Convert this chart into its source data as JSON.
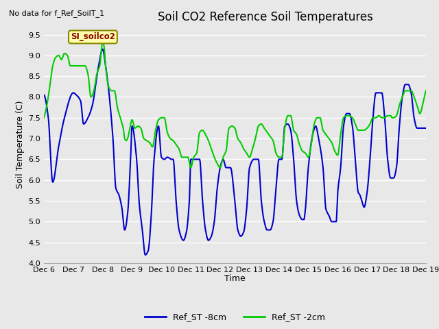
{
  "title": "Soil CO2 Reference Soil Temperatures",
  "xlabel": "Time",
  "ylabel": "Soil Temperature (C)",
  "ylim": [
    4.0,
    9.7
  ],
  "yticks": [
    4.0,
    4.5,
    5.0,
    5.5,
    6.0,
    6.5,
    7.0,
    7.5,
    8.0,
    8.5,
    9.0,
    9.5
  ],
  "xlim_days": [
    6,
    19
  ],
  "xtick_labels": [
    "Dec 6",
    "Dec 7",
    "Dec 8",
    "Dec 9",
    "Dec 10",
    "Dec 11",
    "Dec 12",
    "Dec 13",
    "Dec 14",
    "Dec 15",
    "Dec 16",
    "Dec 17",
    "Dec 18",
    "Dec 19"
  ],
  "xtick_positions": [
    6,
    7,
    8,
    9,
    10,
    11,
    12,
    13,
    14,
    15,
    16,
    17,
    18,
    19
  ],
  "line1_color": "#0000cc",
  "line2_color": "#00cc00",
  "line1_label": "Ref_ST -8cm",
  "line2_label": "Ref_ST -2cm",
  "line_width": 1.5,
  "background_color": "#e8e8e8",
  "annotation_text": "No data for f_Ref_SoilT_1",
  "site_label": "SI_soilco2",
  "title_fontsize": 12,
  "label_fontsize": 9,
  "tick_fontsize": 8,
  "legend_fontsize": 9,
  "blue_pts": [
    [
      6.0,
      8.05
    ],
    [
      6.15,
      7.5
    ],
    [
      6.3,
      5.95
    ],
    [
      6.5,
      6.8
    ],
    [
      6.7,
      7.5
    ],
    [
      7.0,
      8.1
    ],
    [
      7.1,
      8.05
    ],
    [
      7.25,
      7.9
    ],
    [
      7.35,
      7.35
    ],
    [
      7.5,
      7.5
    ],
    [
      7.65,
      7.8
    ],
    [
      7.85,
      8.7
    ],
    [
      8.0,
      9.15
    ],
    [
      8.1,
      8.75
    ],
    [
      8.2,
      8.2
    ],
    [
      8.35,
      7.0
    ],
    [
      8.45,
      5.8
    ],
    [
      8.55,
      5.65
    ],
    [
      8.65,
      5.35
    ],
    [
      8.75,
      4.8
    ],
    [
      8.85,
      5.2
    ],
    [
      8.95,
      6.5
    ],
    [
      9.0,
      7.3
    ],
    [
      9.15,
      6.55
    ],
    [
      9.25,
      5.4
    ],
    [
      9.35,
      4.8
    ],
    [
      9.45,
      4.2
    ],
    [
      9.55,
      4.3
    ],
    [
      9.65,
      5.1
    ],
    [
      9.75,
      6.5
    ],
    [
      9.9,
      7.3
    ],
    [
      10.0,
      6.55
    ],
    [
      10.1,
      6.5
    ],
    [
      10.2,
      6.55
    ],
    [
      10.35,
      6.5
    ],
    [
      10.4,
      6.5
    ],
    [
      10.5,
      5.5
    ],
    [
      10.6,
      4.8
    ],
    [
      10.75,
      4.55
    ],
    [
      10.85,
      4.75
    ],
    [
      10.95,
      5.5
    ],
    [
      11.0,
      6.5
    ],
    [
      11.1,
      6.5
    ],
    [
      11.15,
      6.5
    ],
    [
      11.3,
      6.5
    ],
    [
      11.4,
      5.5
    ],
    [
      11.5,
      4.8
    ],
    [
      11.6,
      4.55
    ],
    [
      11.7,
      4.65
    ],
    [
      11.8,
      5.0
    ],
    [
      11.9,
      5.8
    ],
    [
      12.0,
      6.3
    ],
    [
      12.1,
      6.5
    ],
    [
      12.2,
      6.3
    ],
    [
      12.35,
      6.3
    ],
    [
      12.5,
      5.5
    ],
    [
      12.6,
      4.8
    ],
    [
      12.7,
      4.65
    ],
    [
      12.8,
      4.75
    ],
    [
      12.9,
      5.3
    ],
    [
      13.0,
      6.3
    ],
    [
      13.15,
      6.5
    ],
    [
      13.3,
      6.5
    ],
    [
      13.4,
      5.5
    ],
    [
      13.5,
      5.0
    ],
    [
      13.6,
      4.8
    ],
    [
      13.7,
      4.8
    ],
    [
      13.8,
      5.0
    ],
    [
      13.9,
      5.8
    ],
    [
      14.0,
      6.5
    ],
    [
      14.1,
      6.5
    ],
    [
      14.2,
      7.3
    ],
    [
      14.3,
      7.35
    ],
    [
      14.4,
      7.2
    ],
    [
      14.5,
      6.5
    ],
    [
      14.6,
      5.5
    ],
    [
      14.7,
      5.15
    ],
    [
      14.8,
      5.05
    ],
    [
      14.85,
      5.05
    ],
    [
      14.9,
      5.3
    ],
    [
      15.0,
      6.3
    ],
    [
      15.15,
      7.1
    ],
    [
      15.25,
      7.3
    ],
    [
      15.35,
      7.0
    ],
    [
      15.5,
      6.3
    ],
    [
      15.6,
      5.3
    ],
    [
      15.7,
      5.15
    ],
    [
      15.8,
      5.0
    ],
    [
      15.9,
      5.0
    ],
    [
      15.95,
      5.0
    ],
    [
      16.0,
      5.7
    ],
    [
      16.1,
      6.3
    ],
    [
      16.2,
      7.3
    ],
    [
      16.3,
      7.6
    ],
    [
      16.4,
      7.6
    ],
    [
      16.5,
      7.3
    ],
    [
      16.6,
      6.5
    ],
    [
      16.7,
      5.7
    ],
    [
      16.75,
      5.65
    ],
    [
      16.8,
      5.55
    ],
    [
      16.9,
      5.35
    ],
    [
      17.0,
      5.7
    ],
    [
      17.1,
      6.5
    ],
    [
      17.2,
      7.5
    ],
    [
      17.3,
      8.1
    ],
    [
      17.4,
      8.1
    ],
    [
      17.5,
      8.1
    ],
    [
      17.6,
      7.5
    ],
    [
      17.7,
      6.5
    ],
    [
      17.8,
      6.05
    ],
    [
      17.9,
      6.05
    ],
    [
      18.0,
      6.3
    ],
    [
      18.1,
      7.3
    ],
    [
      18.2,
      8.0
    ],
    [
      18.3,
      8.3
    ],
    [
      18.4,
      8.3
    ],
    [
      18.5,
      8.1
    ],
    [
      18.6,
      7.5
    ],
    [
      18.7,
      7.25
    ],
    [
      18.8,
      7.25
    ],
    [
      18.85,
      7.25
    ],
    [
      18.9,
      7.25
    ],
    [
      19.0,
      7.25
    ]
  ],
  "green_pts": [
    [
      6.0,
      7.5
    ],
    [
      6.1,
      7.8
    ],
    [
      6.2,
      8.25
    ],
    [
      6.3,
      8.75
    ],
    [
      6.4,
      8.95
    ],
    [
      6.5,
      9.0
    ],
    [
      6.6,
      8.9
    ],
    [
      6.7,
      9.05
    ],
    [
      6.8,
      9.0
    ],
    [
      6.9,
      8.75
    ],
    [
      7.0,
      8.75
    ],
    [
      7.1,
      8.75
    ],
    [
      7.2,
      8.75
    ],
    [
      7.3,
      8.75
    ],
    [
      7.4,
      8.75
    ],
    [
      7.5,
      8.55
    ],
    [
      7.6,
      8.0
    ],
    [
      7.7,
      8.15
    ],
    [
      7.8,
      8.55
    ],
    [
      7.9,
      8.75
    ],
    [
      8.0,
      9.35
    ],
    [
      8.05,
      9.2
    ],
    [
      8.1,
      8.75
    ],
    [
      8.2,
      8.25
    ],
    [
      8.3,
      8.15
    ],
    [
      8.4,
      8.15
    ],
    [
      8.5,
      7.75
    ],
    [
      8.6,
      7.5
    ],
    [
      8.7,
      7.25
    ],
    [
      8.75,
      7.0
    ],
    [
      8.8,
      6.95
    ],
    [
      8.85,
      7.0
    ],
    [
      8.9,
      7.15
    ],
    [
      9.0,
      7.45
    ],
    [
      9.1,
      7.25
    ],
    [
      9.2,
      7.3
    ],
    [
      9.3,
      7.25
    ],
    [
      9.4,
      7.0
    ],
    [
      9.5,
      6.95
    ],
    [
      9.6,
      6.9
    ],
    [
      9.7,
      6.8
    ],
    [
      9.8,
      7.2
    ],
    [
      9.9,
      7.45
    ],
    [
      10.0,
      7.5
    ],
    [
      10.1,
      7.5
    ],
    [
      10.2,
      7.15
    ],
    [
      10.3,
      7.0
    ],
    [
      10.4,
      6.95
    ],
    [
      10.5,
      6.85
    ],
    [
      10.6,
      6.75
    ],
    [
      10.7,
      6.55
    ],
    [
      10.8,
      6.55
    ],
    [
      10.9,
      6.55
    ],
    [
      11.0,
      6.3
    ],
    [
      11.1,
      6.55
    ],
    [
      11.2,
      6.65
    ],
    [
      11.3,
      7.15
    ],
    [
      11.4,
      7.2
    ],
    [
      11.5,
      7.1
    ],
    [
      11.6,
      6.95
    ],
    [
      11.7,
      6.75
    ],
    [
      11.8,
      6.55
    ],
    [
      11.9,
      6.4
    ],
    [
      12.0,
      6.3
    ],
    [
      12.1,
      6.55
    ],
    [
      12.2,
      6.7
    ],
    [
      12.3,
      7.25
    ],
    [
      12.4,
      7.3
    ],
    [
      12.5,
      7.25
    ],
    [
      12.6,
      7.0
    ],
    [
      12.7,
      6.9
    ],
    [
      12.8,
      6.75
    ],
    [
      12.9,
      6.65
    ],
    [
      13.0,
      6.55
    ],
    [
      13.1,
      6.75
    ],
    [
      13.2,
      7.0
    ],
    [
      13.3,
      7.3
    ],
    [
      13.4,
      7.35
    ],
    [
      13.5,
      7.25
    ],
    [
      13.6,
      7.15
    ],
    [
      13.7,
      7.05
    ],
    [
      13.8,
      6.95
    ],
    [
      13.9,
      6.65
    ],
    [
      14.0,
      6.55
    ],
    [
      14.1,
      6.55
    ],
    [
      14.2,
      7.25
    ],
    [
      14.3,
      7.55
    ],
    [
      14.4,
      7.55
    ],
    [
      14.5,
      7.2
    ],
    [
      14.6,
      7.1
    ],
    [
      14.7,
      6.85
    ],
    [
      14.8,
      6.7
    ],
    [
      14.9,
      6.65
    ],
    [
      15.0,
      6.55
    ],
    [
      15.1,
      6.85
    ],
    [
      15.2,
      7.35
    ],
    [
      15.3,
      7.5
    ],
    [
      15.4,
      7.5
    ],
    [
      15.5,
      7.2
    ],
    [
      15.6,
      7.1
    ],
    [
      15.7,
      7.0
    ],
    [
      15.8,
      6.9
    ],
    [
      15.9,
      6.7
    ],
    [
      16.0,
      6.6
    ],
    [
      16.1,
      7.1
    ],
    [
      16.2,
      7.5
    ],
    [
      16.3,
      7.55
    ],
    [
      16.4,
      7.55
    ],
    [
      16.5,
      7.5
    ],
    [
      16.6,
      7.35
    ],
    [
      16.7,
      7.2
    ],
    [
      16.8,
      7.2
    ],
    [
      16.9,
      7.2
    ],
    [
      17.0,
      7.25
    ],
    [
      17.1,
      7.35
    ],
    [
      17.2,
      7.5
    ],
    [
      17.3,
      7.5
    ],
    [
      17.4,
      7.55
    ],
    [
      17.5,
      7.5
    ],
    [
      17.6,
      7.5
    ],
    [
      17.7,
      7.55
    ],
    [
      17.8,
      7.55
    ],
    [
      17.85,
      7.5
    ],
    [
      17.9,
      7.5
    ],
    [
      18.0,
      7.55
    ],
    [
      18.1,
      7.8
    ],
    [
      18.2,
      8.0
    ],
    [
      18.3,
      8.15
    ],
    [
      18.4,
      8.15
    ],
    [
      18.5,
      8.15
    ],
    [
      18.6,
      8.0
    ],
    [
      18.7,
      7.8
    ],
    [
      18.8,
      7.6
    ],
    [
      18.9,
      7.85
    ],
    [
      19.0,
      8.15
    ]
  ]
}
